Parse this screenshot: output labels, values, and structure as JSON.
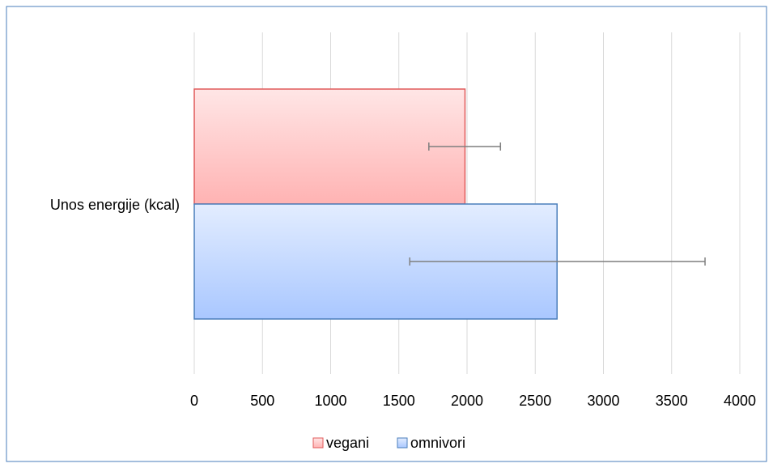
{
  "chart_data": {
    "type": "bar",
    "orientation": "horizontal",
    "categories": [
      "Unos energije (kcal)"
    ],
    "series": [
      {
        "name": "vegani",
        "values": [
          1985
        ],
        "error_low": [
          1720
        ],
        "error_high": [
          2245
        ],
        "color": "#e05a5a",
        "fill_light": "#ffe6e6",
        "fill_dark": "#ffb3b3"
      },
      {
        "name": "omnivori",
        "values": [
          2660
        ],
        "error_low": [
          1580
        ],
        "error_high": [
          3745
        ],
        "color": "#4a7ebb",
        "fill_light": "#e3edff",
        "fill_dark": "#a9c7ff"
      }
    ],
    "xlim": [
      0,
      4000
    ],
    "xticks": [
      "0",
      "500",
      "1000",
      "1500",
      "2000",
      "2500",
      "3000",
      "3500",
      "4000"
    ],
    "grid": true,
    "legend": "bottom"
  },
  "colors": {
    "border": "#4a7ebb",
    "grid": "#d9d9d9",
    "error_bar": "#7f7f7f",
    "text": "#000000"
  }
}
